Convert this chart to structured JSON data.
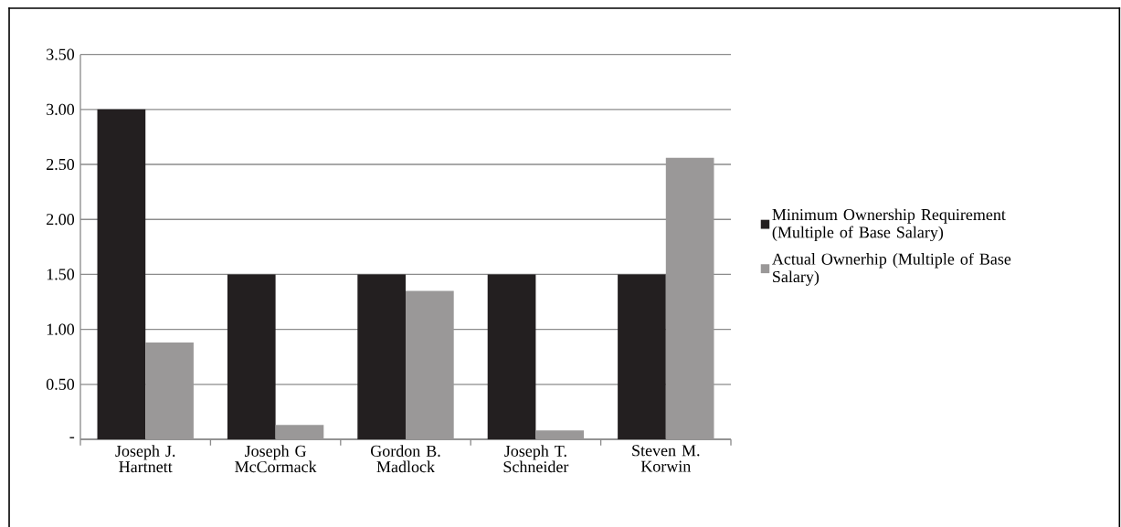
{
  "chart_data": {
    "type": "bar",
    "categories": [
      "Joseph J. Hartnett",
      "Joseph G McCormack",
      "Gordon B. Madlock",
      "Joseph T. Schneider",
      "Steven M. Korwin"
    ],
    "series": [
      {
        "name": "Minimum Ownership Requirement (Multiple of Base Salary)",
        "color": "#231f20",
        "values": [
          3.0,
          1.5,
          1.5,
          1.5,
          1.5
        ]
      },
      {
        "name": "Actual Ownerhip (Multiple of Base Salary)",
        "color": "#9a9898",
        "values": [
          0.88,
          0.13,
          1.35,
          0.08,
          2.56
        ]
      }
    ],
    "ylim": [
      0,
      3.5
    ],
    "yticks": [
      {
        "value": 0,
        "label": "-"
      },
      {
        "value": 0.5,
        "label": "0.50"
      },
      {
        "value": 1,
        "label": "1.00"
      },
      {
        "value": 1.5,
        "label": "1.50"
      },
      {
        "value": 2,
        "label": "2.00"
      },
      {
        "value": 2.5,
        "label": "2.50"
      },
      {
        "value": 3,
        "label": "3.00"
      },
      {
        "value": 3.5,
        "label": "3.50"
      }
    ],
    "grid": "y",
    "legend": "right"
  }
}
